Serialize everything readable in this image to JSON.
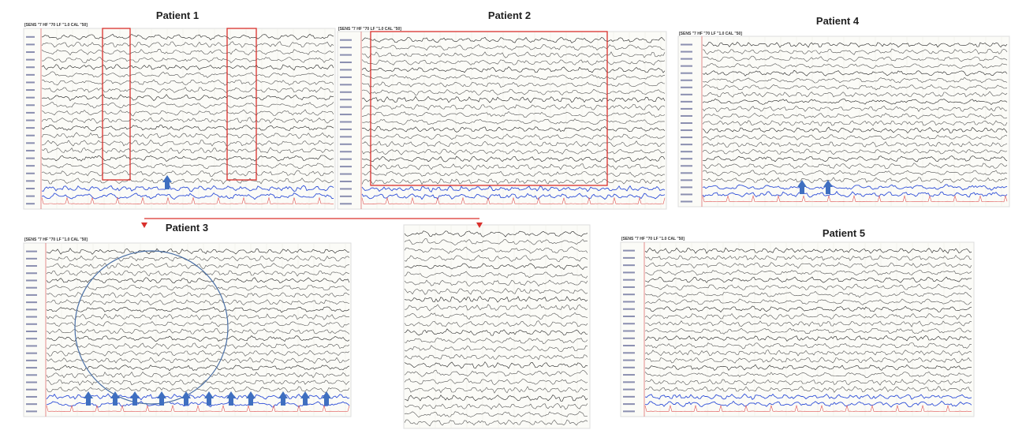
{
  "panels": [
    {
      "title": "Patient 1",
      "header": "[SENS \"7 HF \"70 LF \"1.0 CAL \"50]"
    },
    {
      "title": "Patient 2",
      "header": "[SENS \"7 HF \"70 LF \"1.0 CAL \"50]"
    },
    {
      "title": "Patient 4",
      "header": "[SENS \"7 HF \"70 LF \"1.0 CAL \"50]"
    },
    {
      "title": "Patient 3",
      "header": "[SENS \"7 HF \"70 LF \"1.0 CAL \"50]"
    },
    {
      "title": "Patient 5",
      "header": "[SENS \"7 HF \"70 LF \"1.0 CAL \"50]"
    }
  ]
}
